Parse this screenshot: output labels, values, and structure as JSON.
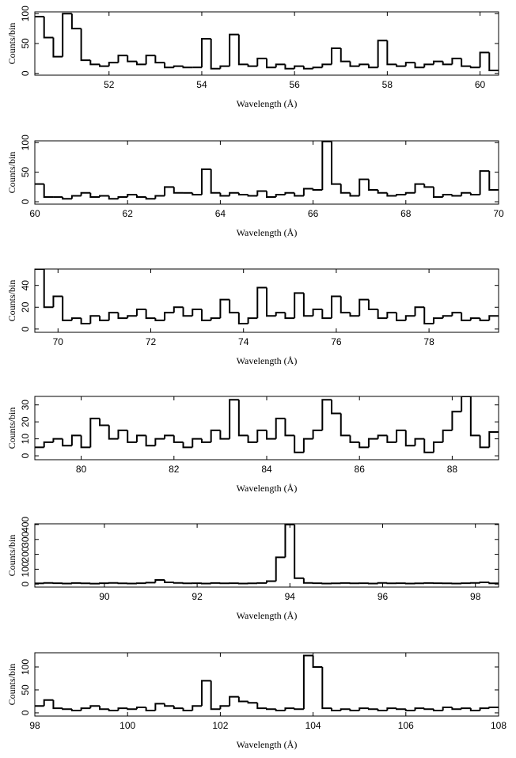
{
  "chart_data": [
    {
      "type": "histogram",
      "xlabel": "Wavelength (Å)",
      "ylabel": "Counts/bin",
      "bins": [
        50.4,
        50.6,
        50.8,
        51,
        51.2,
        51.4,
        51.6,
        51.8,
        52,
        52.2,
        52.4,
        52.6,
        52.8,
        53,
        53.2,
        53.4,
        53.6,
        53.8,
        54,
        54.2,
        54.4,
        54.6,
        54.8,
        55,
        55.2,
        55.4,
        55.6,
        55.8,
        56,
        56.2,
        56.4,
        56.6,
        56.8,
        57,
        57.2,
        57.4,
        57.6,
        57.8,
        58,
        58.2,
        58.4,
        58.6,
        58.8,
        59,
        59.2,
        59.4,
        59.6,
        59.8,
        60,
        60.2,
        60.4
      ],
      "values": [
        95,
        60,
        28,
        100,
        75,
        22,
        15,
        12,
        18,
        30,
        20,
        15,
        30,
        18,
        10,
        12,
        10,
        10,
        58,
        8,
        12,
        65,
        15,
        12,
        25,
        10,
        15,
        8,
        12,
        8,
        10,
        15,
        42,
        20,
        12,
        15,
        10,
        55,
        15,
        12,
        18,
        10,
        15,
        20,
        15,
        25,
        12,
        10,
        35,
        5
      ],
      "color": "#000000",
      "xlim": [
        50.4,
        60.4
      ],
      "xticks": [
        52,
        54,
        56,
        58,
        60
      ],
      "ylim": [
        -3,
        103
      ],
      "yticks": [
        0,
        50,
        100
      ]
    },
    {
      "type": "histogram",
      "xlabel": "Wavelength (Å)",
      "ylabel": "Counts/bin",
      "bins": [
        60,
        60.2,
        60.4,
        60.6,
        60.8,
        61,
        61.2,
        61.4,
        61.6,
        61.8,
        62,
        62.2,
        62.4,
        62.6,
        62.8,
        63,
        63.2,
        63.4,
        63.6,
        63.8,
        64,
        64.2,
        64.4,
        64.6,
        64.8,
        65,
        65.2,
        65.4,
        65.6,
        65.8,
        66,
        66.2,
        66.4,
        66.6,
        66.8,
        67,
        67.2,
        67.4,
        67.6,
        67.8,
        68,
        68.2,
        68.4,
        68.6,
        68.8,
        69,
        69.2,
        69.4,
        69.6,
        69.8,
        70
      ],
      "values": [
        30,
        8,
        8,
        5,
        10,
        15,
        8,
        10,
        5,
        8,
        12,
        8,
        5,
        10,
        25,
        15,
        15,
        12,
        55,
        15,
        10,
        15,
        12,
        10,
        18,
        8,
        12,
        15,
        10,
        22,
        20,
        102,
        30,
        15,
        10,
        38,
        20,
        15,
        10,
        12,
        15,
        30,
        25,
        8,
        12,
        10,
        15,
        12,
        52,
        20
      ],
      "color": "#000000",
      "xlim": [
        60,
        70
      ],
      "xticks": [
        60,
        62,
        64,
        66,
        68,
        70
      ],
      "ylim": [
        -4,
        103
      ],
      "yticks": [
        0,
        50,
        100
      ]
    },
    {
      "type": "histogram",
      "xlabel": "Wavelength (Å)",
      "ylabel": "Counts/bin",
      "bins": [
        69.5,
        69.7,
        69.9,
        70.1,
        70.3,
        70.5,
        70.7,
        70.9,
        71.1,
        71.3,
        71.5,
        71.7,
        71.9,
        72.1,
        72.3,
        72.5,
        72.7,
        72.9,
        73.1,
        73.3,
        73.5,
        73.7,
        73.9,
        74.1,
        74.3,
        74.5,
        74.7,
        74.9,
        75.1,
        75.3,
        75.5,
        75.7,
        75.9,
        76.1,
        76.3,
        76.5,
        76.7,
        76.9,
        77.1,
        77.3,
        77.5,
        77.7,
        77.9,
        78.1,
        78.3,
        78.5,
        78.7,
        78.9,
        79.1,
        79.3,
        79.5
      ],
      "values": [
        55,
        20,
        30,
        8,
        10,
        5,
        12,
        8,
        15,
        10,
        12,
        18,
        10,
        8,
        15,
        20,
        12,
        18,
        8,
        10,
        27,
        15,
        5,
        10,
        38,
        12,
        15,
        10,
        33,
        12,
        18,
        10,
        30,
        15,
        12,
        27,
        18,
        10,
        15,
        8,
        12,
        20,
        5,
        10,
        12,
        15,
        8,
        10,
        8,
        12
      ],
      "color": "#000000",
      "xlim": [
        69.5,
        79.5
      ],
      "xticks": [
        70,
        72,
        74,
        76,
        78
      ],
      "ylim": [
        -3,
        55
      ],
      "yticks": [
        0,
        20,
        40
      ]
    },
    {
      "type": "histogram",
      "xlabel": "Wavelength (Å)",
      "ylabel": "Counts/bin",
      "bins": [
        79,
        79.2,
        79.4,
        79.6,
        79.8,
        80,
        80.2,
        80.4,
        80.6,
        80.8,
        81,
        81.2,
        81.4,
        81.6,
        81.8,
        82,
        82.2,
        82.4,
        82.6,
        82.8,
        83,
        83.2,
        83.4,
        83.6,
        83.8,
        84,
        84.2,
        84.4,
        84.6,
        84.8,
        85,
        85.2,
        85.4,
        85.6,
        85.8,
        86,
        86.2,
        86.4,
        86.6,
        86.8,
        87,
        87.2,
        87.4,
        87.6,
        87.8,
        88,
        88.2,
        88.4,
        88.6,
        88.8,
        89
      ],
      "values": [
        5,
        8,
        10,
        6,
        12,
        5,
        22,
        18,
        10,
        15,
        8,
        12,
        6,
        10,
        12,
        8,
        5,
        10,
        8,
        15,
        10,
        33,
        12,
        8,
        15,
        10,
        22,
        12,
        2,
        10,
        15,
        33,
        25,
        12,
        8,
        5,
        10,
        12,
        8,
        15,
        6,
        10,
        2,
        8,
        15,
        26,
        35,
        12,
        5,
        14
      ],
      "color": "#000000",
      "xlim": [
        79,
        89
      ],
      "xticks": [
        80,
        82,
        84,
        86,
        88
      ],
      "ylim": [
        -2.3,
        35
      ],
      "yticks": [
        0,
        10,
        20,
        30
      ]
    },
    {
      "type": "histogram",
      "xlabel": "Wavelength (Å)",
      "ylabel": "Counts/bin",
      "bins": [
        88.5,
        88.7,
        88.9,
        89.1,
        89.3,
        89.5,
        89.7,
        89.9,
        90.1,
        90.3,
        90.5,
        90.7,
        90.9,
        91.1,
        91.3,
        91.5,
        91.7,
        91.9,
        92.1,
        92.3,
        92.5,
        92.7,
        92.9,
        93.1,
        93.3,
        93.5,
        93.7,
        93.9,
        94.1,
        94.3,
        94.5,
        94.7,
        94.9,
        95.1,
        95.3,
        95.5,
        95.7,
        95.9,
        96.1,
        96.3,
        96.5,
        96.7,
        96.9,
        97.1,
        97.3,
        97.5,
        97.7,
        97.9,
        98.1,
        98.3,
        98.5
      ],
      "values": [
        5,
        8,
        6,
        4,
        7,
        5,
        3,
        6,
        8,
        5,
        4,
        6,
        10,
        28,
        12,
        8,
        5,
        6,
        4,
        7,
        5,
        6,
        4,
        5,
        7,
        20,
        180,
        400,
        40,
        8,
        6,
        4,
        5,
        7,
        5,
        6,
        4,
        8,
        5,
        6,
        4,
        5,
        7,
        6,
        5,
        4,
        6,
        8,
        12,
        5
      ],
      "color": "#000000",
      "xlim": [
        88.5,
        98.5
      ],
      "xticks": [
        90,
        92,
        94,
        96,
        98
      ],
      "ylim": [
        -20,
        405
      ],
      "yticks": [
        0,
        100,
        200,
        300,
        400
      ]
    },
    {
      "type": "histogram",
      "xlabel": "Wavelength (Å)",
      "ylabel": "Counts/bin",
      "bins": [
        98,
        98.2,
        98.4,
        98.6,
        98.8,
        99,
        99.2,
        99.4,
        99.6,
        99.8,
        100,
        100.2,
        100.4,
        100.6,
        100.8,
        101,
        101.2,
        101.4,
        101.6,
        101.8,
        102,
        102.2,
        102.4,
        102.6,
        102.8,
        103,
        103.2,
        103.4,
        103.6,
        103.8,
        104,
        104.2,
        104.4,
        104.6,
        104.8,
        105,
        105.2,
        105.4,
        105.6,
        105.8,
        106,
        106.2,
        106.4,
        106.6,
        106.8,
        107,
        107.2,
        107.4,
        107.6,
        107.8,
        108
      ],
      "values": [
        15,
        28,
        10,
        8,
        5,
        10,
        15,
        8,
        5,
        10,
        8,
        12,
        5,
        20,
        15,
        10,
        5,
        15,
        70,
        8,
        15,
        35,
        25,
        22,
        10,
        8,
        5,
        10,
        8,
        125,
        100,
        10,
        5,
        8,
        5,
        10,
        8,
        5,
        10,
        8,
        5,
        10,
        8,
        5,
        12,
        8,
        10,
        5,
        10,
        12
      ],
      "color": "#000000",
      "xlim": [
        98,
        108
      ],
      "xticks": [
        98,
        100,
        102,
        104,
        106,
        108
      ],
      "ylim": [
        -7,
        131
      ],
      "yticks": [
        0,
        50,
        100
      ]
    }
  ]
}
